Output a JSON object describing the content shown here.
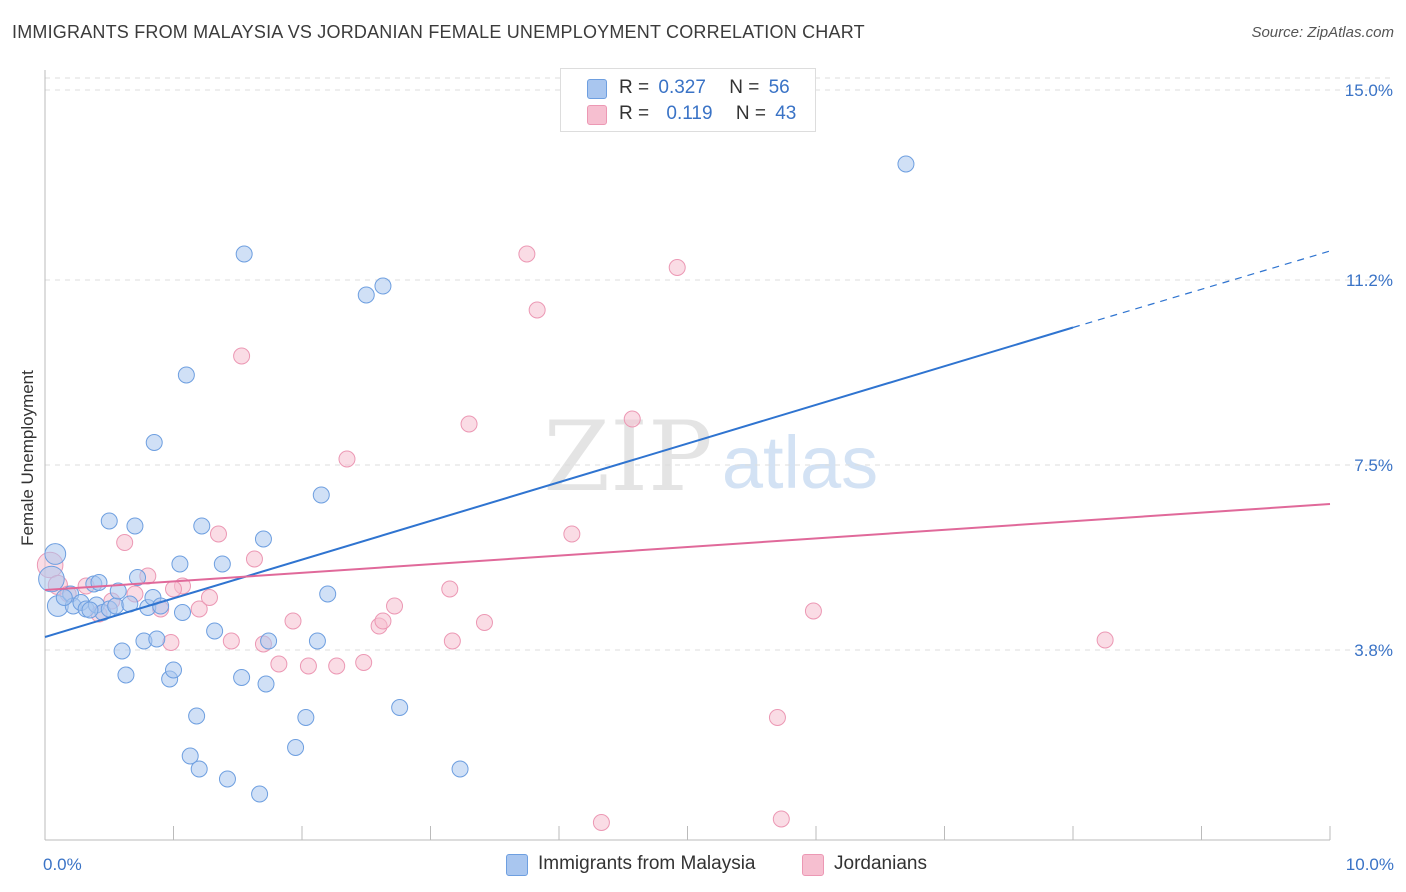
{
  "title": "IMMIGRANTS FROM MALAYSIA VS JORDANIAN FEMALE UNEMPLOYMENT CORRELATION CHART",
  "source": "Source: ZipAtlas.com",
  "watermark": {
    "zip": "ZIP",
    "atlas": "atlas"
  },
  "legend_top": {
    "rows": [
      {
        "r_label": "R =",
        "r_value": "0.327",
        "n_label": "N =",
        "n_value": "56"
      },
      {
        "r_label": "R =",
        "r_value": "0.119",
        "n_label": "N =",
        "n_value": "43"
      }
    ]
  },
  "legend_bottom": {
    "items": [
      {
        "label": "Immigrants from Malaysia"
      },
      {
        "label": "Jordanians"
      }
    ]
  },
  "colors": {
    "blue_fill": "#a9c6ef",
    "blue_stroke": "#6e9fe0",
    "blue_line": "#2f74d0",
    "pink_fill": "#f6bfd0",
    "pink_stroke": "#ec98b4",
    "pink_line": "#e0699a",
    "grid": "#dddddd",
    "tick_label": "#3a73c6"
  },
  "chart_data": {
    "type": "scatter",
    "title": "IMMIGRANTS FROM MALAYSIA VS JORDANIAN FEMALE UNEMPLOYMENT CORRELATION CHART",
    "xlabel": "",
    "ylabel": "Female Unemployment",
    "xlim": [
      0,
      10
    ],
    "ylim": [
      0,
      15.4
    ],
    "x_tick_labels": [
      {
        "value": 0,
        "label": "0.0%"
      },
      {
        "value": 10,
        "label": "10.0%"
      }
    ],
    "y_tick_labels": [
      {
        "value": 3.8,
        "label": "3.8%"
      },
      {
        "value": 7.5,
        "label": "7.5%"
      },
      {
        "value": 11.2,
        "label": "11.2%"
      },
      {
        "value": 15.0,
        "label": "15.0%"
      }
    ],
    "series": [
      {
        "name": "Immigrants from Malaysia",
        "r": 0.327,
        "n": 56,
        "trend": {
          "x0": 0,
          "y0": 4.06,
          "x1": 8.0,
          "y1": 10.25,
          "dash_x1": 10.0,
          "dash_y1": 11.78
        },
        "points": [
          {
            "x": 0.05,
            "y": 5.22,
            "s": 1.6
          },
          {
            "x": 0.08,
            "y": 5.72,
            "s": 1.3
          },
          {
            "x": 0.1,
            "y": 4.68,
            "s": 1.3
          },
          {
            "x": 0.2,
            "y": 4.92,
            "s": 1
          },
          {
            "x": 0.22,
            "y": 4.68,
            "s": 1
          },
          {
            "x": 0.28,
            "y": 4.75,
            "s": 1
          },
          {
            "x": 0.32,
            "y": 4.62,
            "s": 1
          },
          {
            "x": 0.38,
            "y": 5.12,
            "s": 1
          },
          {
            "x": 0.4,
            "y": 4.7,
            "s": 1
          },
          {
            "x": 0.45,
            "y": 4.55,
            "s": 1
          },
          {
            "x": 0.42,
            "y": 5.15,
            "s": 1
          },
          {
            "x": 0.5,
            "y": 4.62,
            "s": 1
          },
          {
            "x": 0.55,
            "y": 4.68,
            "s": 1
          },
          {
            "x": 0.5,
            "y": 6.38,
            "s": 1
          },
          {
            "x": 0.57,
            "y": 4.98,
            "s": 1
          },
          {
            "x": 0.6,
            "y": 3.78,
            "s": 1
          },
          {
            "x": 0.63,
            "y": 3.3,
            "s": 1
          },
          {
            "x": 0.66,
            "y": 4.72,
            "s": 1
          },
          {
            "x": 0.7,
            "y": 6.28,
            "s": 1
          },
          {
            "x": 0.72,
            "y": 5.25,
            "s": 1
          },
          {
            "x": 0.77,
            "y": 3.98,
            "s": 1
          },
          {
            "x": 0.8,
            "y": 4.65,
            "s": 1
          },
          {
            "x": 0.84,
            "y": 4.85,
            "s": 1
          },
          {
            "x": 0.85,
            "y": 7.95,
            "s": 1
          },
          {
            "x": 0.87,
            "y": 4.02,
            "s": 1
          },
          {
            "x": 0.9,
            "y": 4.68,
            "s": 1
          },
          {
            "x": 0.97,
            "y": 3.22,
            "s": 1
          },
          {
            "x": 1.0,
            "y": 3.4,
            "s": 1
          },
          {
            "x": 1.05,
            "y": 5.52,
            "s": 1
          },
          {
            "x": 1.07,
            "y": 4.55,
            "s": 1
          },
          {
            "x": 1.1,
            "y": 9.3,
            "s": 1
          },
          {
            "x": 1.13,
            "y": 1.68,
            "s": 1
          },
          {
            "x": 1.18,
            "y": 2.48,
            "s": 1
          },
          {
            "x": 1.2,
            "y": 1.42,
            "s": 1
          },
          {
            "x": 1.22,
            "y": 6.28,
            "s": 1
          },
          {
            "x": 1.32,
            "y": 4.18,
            "s": 1
          },
          {
            "x": 1.38,
            "y": 5.52,
            "s": 1
          },
          {
            "x": 1.42,
            "y": 1.22,
            "s": 1
          },
          {
            "x": 1.53,
            "y": 3.25,
            "s": 1
          },
          {
            "x": 1.55,
            "y": 11.72,
            "s": 1
          },
          {
            "x": 1.67,
            "y": 0.92,
            "s": 1
          },
          {
            "x": 1.7,
            "y": 6.02,
            "s": 1
          },
          {
            "x": 1.72,
            "y": 3.12,
            "s": 1
          },
          {
            "x": 1.74,
            "y": 3.98,
            "s": 1
          },
          {
            "x": 1.95,
            "y": 1.85,
            "s": 1
          },
          {
            "x": 2.03,
            "y": 2.45,
            "s": 1
          },
          {
            "x": 2.12,
            "y": 3.98,
            "s": 1
          },
          {
            "x": 2.15,
            "y": 6.9,
            "s": 1
          },
          {
            "x": 2.2,
            "y": 4.92,
            "s": 1
          },
          {
            "x": 2.5,
            "y": 10.9,
            "s": 1
          },
          {
            "x": 2.63,
            "y": 11.08,
            "s": 1
          },
          {
            "x": 2.76,
            "y": 2.65,
            "s": 1
          },
          {
            "x": 3.23,
            "y": 1.42,
            "s": 1
          },
          {
            "x": 6.7,
            "y": 13.52,
            "s": 1
          },
          {
            "x": 0.15,
            "y": 4.85,
            "s": 1
          },
          {
            "x": 0.35,
            "y": 4.6,
            "s": 1
          }
        ]
      },
      {
        "name": "Jordanians",
        "r": 0.119,
        "n": 43,
        "trend": {
          "x0": 0,
          "y0": 5.0,
          "x1": 10.0,
          "y1": 6.72
        },
        "points": [
          {
            "x": 0.04,
            "y": 5.5,
            "s": 1.6
          },
          {
            "x": 0.1,
            "y": 5.1,
            "s": 1.2
          },
          {
            "x": 0.18,
            "y": 4.92,
            "s": 1
          },
          {
            "x": 0.32,
            "y": 5.08,
            "s": 1
          },
          {
            "x": 0.42,
            "y": 4.52,
            "s": 1
          },
          {
            "x": 0.52,
            "y": 4.78,
            "s": 1
          },
          {
            "x": 0.62,
            "y": 5.95,
            "s": 1
          },
          {
            "x": 0.7,
            "y": 4.92,
            "s": 1
          },
          {
            "x": 0.8,
            "y": 5.28,
            "s": 1
          },
          {
            "x": 0.9,
            "y": 4.62,
            "s": 1
          },
          {
            "x": 0.98,
            "y": 3.95,
            "s": 1
          },
          {
            "x": 1.07,
            "y": 5.08,
            "s": 1
          },
          {
            "x": 1.2,
            "y": 4.62,
            "s": 1
          },
          {
            "x": 1.28,
            "y": 4.85,
            "s": 1
          },
          {
            "x": 1.35,
            "y": 6.12,
            "s": 1
          },
          {
            "x": 1.45,
            "y": 3.98,
            "s": 1
          },
          {
            "x": 1.53,
            "y": 9.68,
            "s": 1
          },
          {
            "x": 1.63,
            "y": 5.62,
            "s": 1
          },
          {
            "x": 1.7,
            "y": 3.92,
            "s": 1
          },
          {
            "x": 1.82,
            "y": 3.52,
            "s": 1
          },
          {
            "x": 1.93,
            "y": 4.38,
            "s": 1
          },
          {
            "x": 2.05,
            "y": 3.48,
            "s": 1
          },
          {
            "x": 2.27,
            "y": 3.48,
            "s": 1
          },
          {
            "x": 2.35,
            "y": 7.62,
            "s": 1
          },
          {
            "x": 2.48,
            "y": 3.55,
            "s": 1
          },
          {
            "x": 2.6,
            "y": 4.28,
            "s": 1
          },
          {
            "x": 2.63,
            "y": 4.38,
            "s": 1
          },
          {
            "x": 2.72,
            "y": 4.68,
            "s": 1
          },
          {
            "x": 3.15,
            "y": 5.02,
            "s": 1
          },
          {
            "x": 3.17,
            "y": 3.98,
            "s": 1
          },
          {
            "x": 3.3,
            "y": 8.32,
            "s": 1
          },
          {
            "x": 3.42,
            "y": 4.35,
            "s": 1
          },
          {
            "x": 3.75,
            "y": 11.72,
            "s": 1
          },
          {
            "x": 3.83,
            "y": 10.6,
            "s": 1
          },
          {
            "x": 4.1,
            "y": 6.12,
            "s": 1
          },
          {
            "x": 4.33,
            "y": 0.35,
            "s": 1
          },
          {
            "x": 4.57,
            "y": 8.42,
            "s": 1
          },
          {
            "x": 4.92,
            "y": 11.45,
            "s": 1
          },
          {
            "x": 5.7,
            "y": 2.45,
            "s": 1
          },
          {
            "x": 5.73,
            "y": 0.42,
            "s": 1
          },
          {
            "x": 5.98,
            "y": 4.58,
            "s": 1
          },
          {
            "x": 8.25,
            "y": 4.0,
            "s": 1
          },
          {
            "x": 1.0,
            "y": 5.02,
            "s": 1
          }
        ]
      }
    ]
  }
}
